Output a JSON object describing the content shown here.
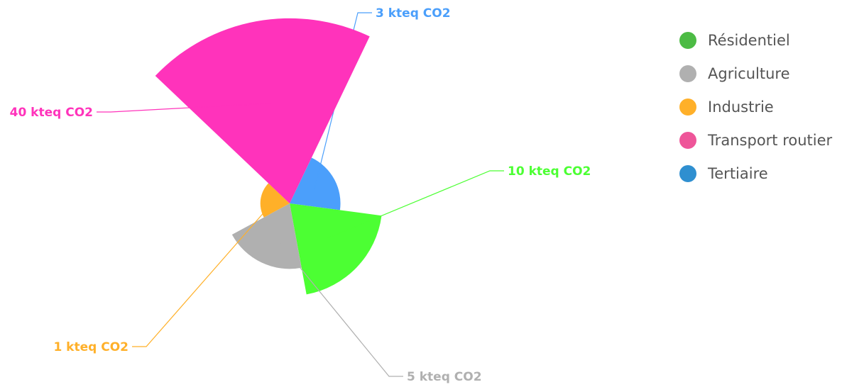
{
  "chart_data": {
    "type": "polar-area",
    "title": "",
    "legend_position": "right",
    "series": [
      {
        "name": "Résidentiel",
        "value": 10,
        "label": "10 kteq CO2",
        "color": "#4cff33",
        "legend_color": "#4cbb44"
      },
      {
        "name": "Agriculture",
        "value": 5,
        "label": "5 kteq CO2",
        "color": "#b0b0b0",
        "legend_color": "#b0b0b0"
      },
      {
        "name": "Industrie",
        "value": 1,
        "label": "1 kteq CO2",
        "color": "#ffb029",
        "legend_color": "#ffb029"
      },
      {
        "name": "Transport routier",
        "value": 40,
        "label": "40 kteq CO2",
        "color": "#ff33bb",
        "legend_color": "#ee5599"
      },
      {
        "name": "Tertiaire",
        "value": 3,
        "label": "3 kteq CO2",
        "color": "#4b9ffb",
        "legend_color": "#2f8fd0"
      }
    ],
    "slice_order": [
      "Tertiaire",
      "Résidentiel",
      "Agriculture",
      "Industrie",
      "Transport routier"
    ]
  }
}
